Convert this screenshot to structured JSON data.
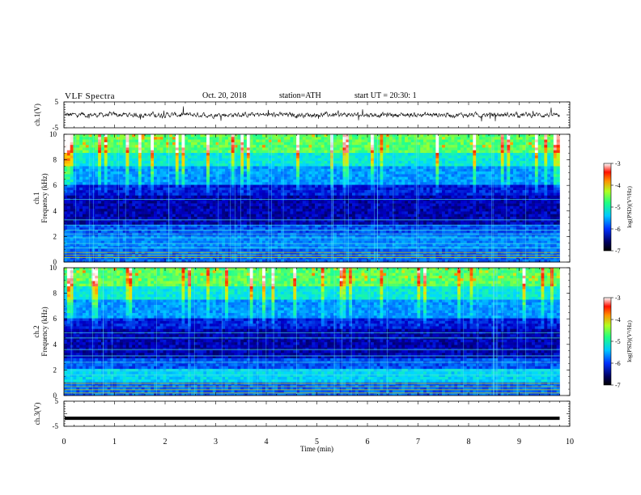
{
  "header": {
    "title": "VLF Spectra",
    "date": "Oct. 20, 2018",
    "station": "station=ATH",
    "start": "start UT = 20:30: 1"
  },
  "chart_data": [
    {
      "type": "line",
      "ylabel": "ch.1(V)",
      "ylim": [
        -5,
        5
      ],
      "yticks": [
        "5",
        "-5"
      ],
      "series": [
        {
          "x_range_min": [
            0,
            9.8
          ],
          "baseline": 0,
          "noise": "continuous fluctuating waveform roughly between -1.5 and 1.5 V"
        }
      ]
    },
    {
      "type": "heatmap",
      "ylabel": "ch.1 Frequency (kHz)",
      "ylim": [
        0,
        10
      ],
      "yticks": [
        "0",
        "2",
        "4",
        "6",
        "8",
        "10"
      ],
      "colorbar": {
        "label": "log(PSD)(V²/Hz)",
        "range": [
          -7,
          -3
        ],
        "ticks": [
          "-3",
          "-4",
          "-5",
          "-6",
          "-7"
        ]
      }
    },
    {
      "type": "heatmap",
      "ylabel": "ch.2 Frequency (kHz)",
      "ylim": [
        0,
        10
      ],
      "yticks": [
        "0",
        "2",
        "4",
        "6",
        "8",
        "10"
      ],
      "colorbar": {
        "label": "log(PSD)(V²/Hz)",
        "range": [
          -7,
          -3
        ],
        "ticks": [
          "-3",
          "-4",
          "-5",
          "-6",
          "-7"
        ]
      }
    },
    {
      "type": "line",
      "ylabel": "ch.3(V)",
      "ylim": [
        -5,
        5
      ],
      "yticks": [
        "5",
        "-5"
      ],
      "series": [
        {
          "constant_value": -1.8
        }
      ]
    },
    {
      "xlabel": "Time (min)",
      "xlim": [
        0,
        10
      ],
      "xticks": [
        "0",
        "1",
        "2",
        "3",
        "4",
        "5",
        "6",
        "7",
        "8",
        "9",
        "10"
      ],
      "data_end_min": 9.8
    }
  ],
  "colors": {
    "colormap": [
      "#000040",
      "#0000cc",
      "#0070ff",
      "#00d8ff",
      "#20ff90",
      "#b0ff20",
      "#ffd000",
      "#ff2000",
      "#ffffff"
    ]
  }
}
